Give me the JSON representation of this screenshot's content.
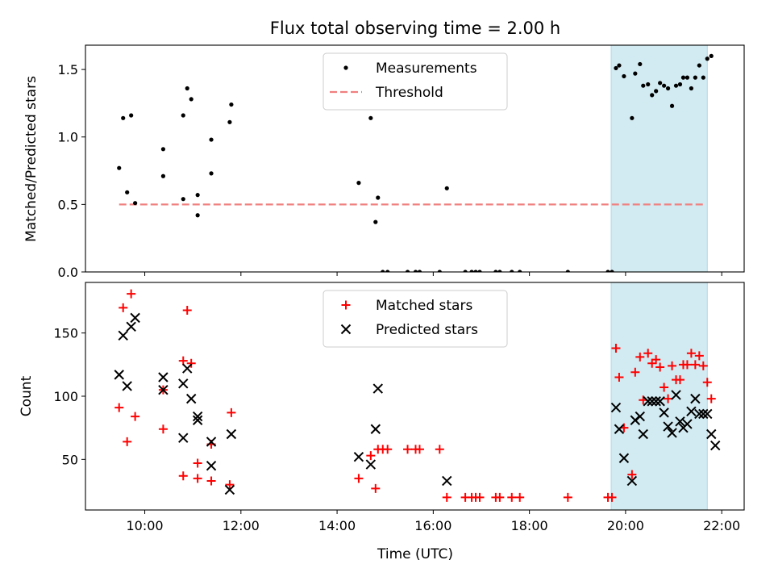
{
  "chart_data": [
    {
      "type": "scatter",
      "title": "Flux total observing time = 2.00 h",
      "ylabel": "Matched/Predicted stars",
      "ylim": [
        0,
        1.68
      ],
      "yticks": [
        0.0,
        0.5,
        1.0,
        1.5
      ],
      "ytick_labels": [
        "0.0",
        "0.5",
        "1.0",
        "1.5"
      ],
      "highlight_span": [
        "19:42",
        "21:42"
      ],
      "highlight_color": "#add8e6",
      "legend": {
        "position": "upper center",
        "entries": [
          "Measurements",
          "Threshold"
        ]
      },
      "threshold": {
        "name": "Threshold",
        "value": 0.5,
        "x_range": [
          "09:28",
          "21:40"
        ],
        "color": "#f08080",
        "style": "dashed"
      },
      "series": [
        {
          "name": "Measurements",
          "color": "#000000",
          "marker": "dot",
          "points": [
            [
              "09:28",
              0.77
            ],
            [
              "09:33",
              1.14
            ],
            [
              "09:38",
              0.59
            ],
            [
              "09:43",
              1.16
            ],
            [
              "09:48",
              0.51
            ],
            [
              "10:23",
              0.91
            ],
            [
              "10:23",
              0.71
            ],
            [
              "10:48",
              1.16
            ],
            [
              "10:48",
              0.54
            ],
            [
              "10:53",
              1.36
            ],
            [
              "10:58",
              1.28
            ],
            [
              "11:06",
              0.57
            ],
            [
              "11:06",
              0.42
            ],
            [
              "11:23",
              0.98
            ],
            [
              "11:23",
              0.73
            ],
            [
              "11:46",
              1.11
            ],
            [
              "11:48",
              1.24
            ],
            [
              "14:27",
              0.66
            ],
            [
              "14:42",
              1.14
            ],
            [
              "14:48",
              0.37
            ],
            [
              "14:51",
              0.55
            ],
            [
              "14:57",
              0.0
            ],
            [
              "15:03",
              0.0
            ],
            [
              "15:28",
              0.0
            ],
            [
              "15:38",
              0.0
            ],
            [
              "15:43",
              0.0
            ],
            [
              "16:08",
              0.0
            ],
            [
              "16:17",
              0.62
            ],
            [
              "16:40",
              0.0
            ],
            [
              "16:48",
              0.0
            ],
            [
              "16:53",
              0.0
            ],
            [
              "16:58",
              0.0
            ],
            [
              "17:18",
              0.0
            ],
            [
              "17:23",
              0.0
            ],
            [
              "17:38",
              0.0
            ],
            [
              "17:48",
              0.0
            ],
            [
              "18:48",
              0.0
            ],
            [
              "19:38",
              0.0
            ],
            [
              "19:43",
              0.0
            ],
            [
              "19:48",
              1.51
            ],
            [
              "19:52",
              1.53
            ],
            [
              "19:58",
              1.45
            ],
            [
              "20:08",
              1.14
            ],
            [
              "20:12",
              1.47
            ],
            [
              "20:18",
              1.54
            ],
            [
              "20:22",
              1.38
            ],
            [
              "20:28",
              1.39
            ],
            [
              "20:33",
              1.31
            ],
            [
              "20:38",
              1.34
            ],
            [
              "20:43",
              1.4
            ],
            [
              "20:48",
              1.38
            ],
            [
              "20:53",
              1.36
            ],
            [
              "20:58",
              1.23
            ],
            [
              "21:03",
              1.38
            ],
            [
              "21:08",
              1.39
            ],
            [
              "21:12",
              1.44
            ],
            [
              "21:17",
              1.44
            ],
            [
              "21:22",
              1.36
            ],
            [
              "21:27",
              1.44
            ],
            [
              "21:32",
              1.53
            ],
            [
              "21:37",
              1.44
            ],
            [
              "21:42",
              1.58
            ],
            [
              "21:47",
              1.6
            ]
          ]
        }
      ]
    },
    {
      "type": "scatter",
      "title": "",
      "xlabel": "Time (UTC)",
      "ylabel": "Count",
      "xlim": [
        "08:46",
        "22:28"
      ],
      "xticks": [
        "10:00",
        "12:00",
        "14:00",
        "16:00",
        "18:00",
        "20:00",
        "22:00"
      ],
      "ylim": [
        10,
        190
      ],
      "yticks": [
        50,
        100,
        150
      ],
      "ytick_labels": [
        "50",
        "100",
        "150"
      ],
      "highlight_span": [
        "19:42",
        "21:42"
      ],
      "highlight_color": "#add8e6",
      "legend": {
        "position": "upper center",
        "entries": [
          "Matched stars",
          "Predicted stars"
        ]
      },
      "series": [
        {
          "name": "Matched stars",
          "color": "#ff0000",
          "marker": "plus",
          "points": [
            [
              "09:28",
              91
            ],
            [
              "09:33",
              170
            ],
            [
              "09:38",
              64
            ],
            [
              "09:43",
              181
            ],
            [
              "09:48",
              84
            ],
            [
              "10:23",
              105
            ],
            [
              "10:23",
              74
            ],
            [
              "10:48",
              37
            ],
            [
              "10:48",
              128
            ],
            [
              "10:53",
              168
            ],
            [
              "10:58",
              126
            ],
            [
              "11:06",
              47
            ],
            [
              "11:06",
              35
            ],
            [
              "11:23",
              33
            ],
            [
              "11:23",
              62
            ],
            [
              "11:46",
              30
            ],
            [
              "11:48",
              87
            ],
            [
              "14:27",
              35
            ],
            [
              "14:42",
              53
            ],
            [
              "14:48",
              27
            ],
            [
              "14:51",
              58
            ],
            [
              "14:57",
              58
            ],
            [
              "15:03",
              58
            ],
            [
              "15:28",
              58
            ],
            [
              "15:38",
              58
            ],
            [
              "15:43",
              58
            ],
            [
              "16:08",
              58
            ],
            [
              "16:17",
              20
            ],
            [
              "16:40",
              20
            ],
            [
              "16:48",
              20
            ],
            [
              "16:53",
              20
            ],
            [
              "16:58",
              20
            ],
            [
              "17:18",
              20
            ],
            [
              "17:23",
              20
            ],
            [
              "17:38",
              20
            ],
            [
              "17:48",
              20
            ],
            [
              "18:48",
              20
            ],
            [
              "19:38",
              20
            ],
            [
              "19:43",
              20
            ],
            [
              "19:48",
              138
            ],
            [
              "19:52",
              115
            ],
            [
              "19:58",
              75
            ],
            [
              "20:08",
              38
            ],
            [
              "20:12",
              119
            ],
            [
              "20:18",
              131
            ],
            [
              "20:22",
              97
            ],
            [
              "20:28",
              134
            ],
            [
              "20:33",
              126
            ],
            [
              "20:38",
              129
            ],
            [
              "20:43",
              123
            ],
            [
              "20:48",
              107
            ],
            [
              "20:53",
              98
            ],
            [
              "20:58",
              124
            ],
            [
              "21:03",
              113
            ],
            [
              "21:08",
              113
            ],
            [
              "21:12",
              125
            ],
            [
              "21:17",
              125
            ],
            [
              "21:22",
              134
            ],
            [
              "21:27",
              125
            ],
            [
              "21:32",
              132
            ],
            [
              "21:37",
              124
            ],
            [
              "21:42",
              111
            ],
            [
              "21:47",
              98
            ]
          ]
        },
        {
          "name": "Predicted stars",
          "color": "#000000",
          "marker": "x",
          "points": [
            [
              "09:28",
              117
            ],
            [
              "09:33",
              148
            ],
            [
              "09:38",
              108
            ],
            [
              "09:43",
              155
            ],
            [
              "09:48",
              162
            ],
            [
              "10:23",
              115
            ],
            [
              "10:23",
              105
            ],
            [
              "10:48",
              67
            ],
            [
              "10:48",
              110
            ],
            [
              "10:53",
              122
            ],
            [
              "10:58",
              98
            ],
            [
              "11:06",
              84
            ],
            [
              "11:06",
              81
            ],
            [
              "11:23",
              64
            ],
            [
              "11:23",
              45
            ],
            [
              "11:46",
              26
            ],
            [
              "11:48",
              70
            ],
            [
              "14:27",
              52
            ],
            [
              "14:42",
              46
            ],
            [
              "14:48",
              74
            ],
            [
              "14:51",
              106
            ],
            [
              "16:17",
              33
            ],
            [
              "19:48",
              91
            ],
            [
              "19:52",
              74
            ],
            [
              "19:58",
              51
            ],
            [
              "20:08",
              33
            ],
            [
              "20:12",
              81
            ],
            [
              "20:18",
              84
            ],
            [
              "20:22",
              70
            ],
            [
              "20:28",
              96
            ],
            [
              "20:33",
              96
            ],
            [
              "20:38",
              96
            ],
            [
              "20:43",
              96
            ],
            [
              "20:48",
              87
            ],
            [
              "20:53",
              76
            ],
            [
              "20:58",
              71
            ],
            [
              "21:03",
              101
            ],
            [
              "21:08",
              80
            ],
            [
              "21:12",
              75
            ],
            [
              "21:17",
              78
            ],
            [
              "21:22",
              88
            ],
            [
              "21:27",
              98
            ],
            [
              "21:32",
              86
            ],
            [
              "21:37",
              86
            ],
            [
              "21:42",
              86
            ],
            [
              "21:47",
              70
            ],
            [
              "21:52",
              61
            ]
          ]
        }
      ]
    }
  ]
}
